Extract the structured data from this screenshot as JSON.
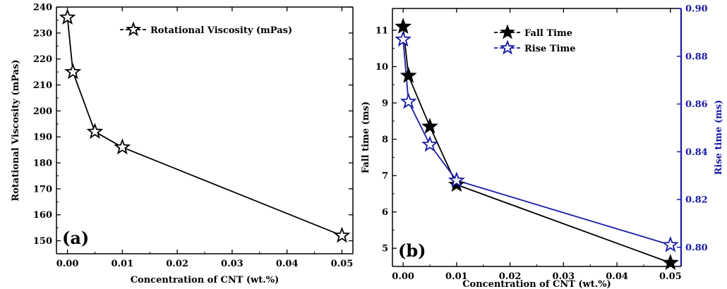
{
  "chart_data": [
    {
      "type": "line",
      "panel_label": "(a)",
      "xlabel": "Concentration of CNT (wt.%)",
      "ylabel": "Rotational Viscosity (mPas)",
      "xlim": [
        -0.002,
        0.052
      ],
      "ylim": [
        145,
        240
      ],
      "xticks": [
        0.0,
        0.01,
        0.02,
        0.03,
        0.04,
        0.05
      ],
      "xtick_labels": [
        "0.00",
        "0.01",
        "0.02",
        "0.03",
        "0.04",
        "0.05"
      ],
      "yticks": [
        150,
        160,
        170,
        180,
        190,
        200,
        210,
        220,
        230,
        240
      ],
      "ytick_labels": [
        "150",
        "160",
        "170",
        "180",
        "190",
        "200",
        "210",
        "220",
        "230",
        "240"
      ],
      "legend_position": "top-right",
      "grid": false,
      "series": [
        {
          "name": "Rotational Viscosity (mPas)",
          "color": "#000000",
          "marker": "open-star",
          "x": [
            0.0,
            0.001,
            0.005,
            0.01,
            0.05
          ],
          "y": [
            236,
            215,
            192,
            186,
            152
          ]
        }
      ]
    },
    {
      "type": "line",
      "panel_label": "(b)",
      "xlabel": "Concentration of CNT (wt.%)",
      "ylabel": "Fall time (ms)",
      "y2label": "Rise time (ms)",
      "y2label_color": "#1a1aa6",
      "xlim": [
        -0.002,
        0.052
      ],
      "ylim": [
        4.5,
        11.6
      ],
      "y2lim": [
        0.792,
        0.9
      ],
      "xticks": [
        0.0,
        0.01,
        0.02,
        0.03,
        0.04,
        0.05
      ],
      "xtick_labels": [
        "0.00",
        "0.01",
        "0.02",
        "0.03",
        "0.04",
        "0.05"
      ],
      "yticks": [
        5,
        6,
        7,
        8,
        9,
        10,
        11
      ],
      "ytick_labels": [
        "5",
        "6",
        "7",
        "8",
        "9",
        "10",
        "11"
      ],
      "y2ticks": [
        0.8,
        0.82,
        0.84,
        0.86,
        0.88,
        0.9
      ],
      "y2tick_labels": [
        "0.80",
        "0.82",
        "0.84",
        "0.86",
        "0.88",
        "0.90"
      ],
      "legend_position": "top-center",
      "grid": false,
      "series": [
        {
          "name": "Fall Time",
          "axis": "left",
          "color": "#000000",
          "marker": "filled-star",
          "x": [
            0.0,
            0.001,
            0.005,
            0.01,
            0.05
          ],
          "y": [
            11.1,
            9.75,
            8.35,
            6.75,
            4.6
          ]
        },
        {
          "name": "Rise Time",
          "axis": "right",
          "color": "#1a1aa6",
          "marker": "open-star",
          "x": [
            0.0,
            0.001,
            0.005,
            0.01,
            0.05
          ],
          "y": [
            0.887,
            0.861,
            0.843,
            0.828,
            0.801
          ]
        }
      ]
    }
  ]
}
